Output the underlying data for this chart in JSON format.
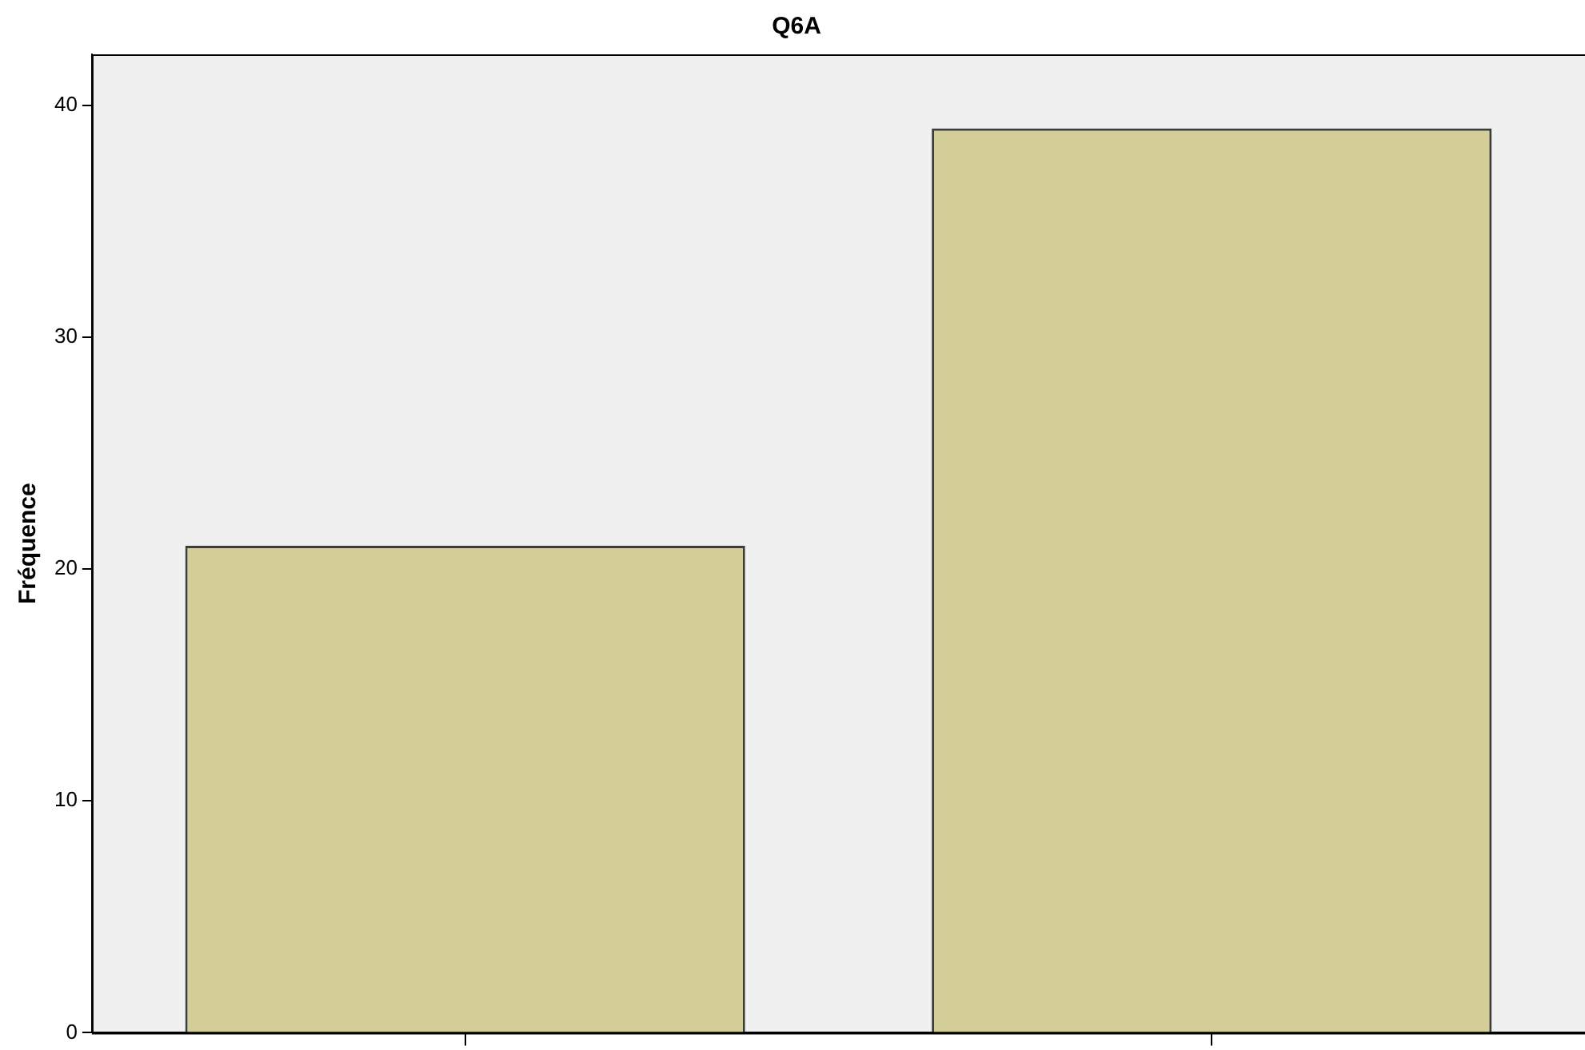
{
  "chart_data": {
    "type": "bar",
    "title": "Q6A",
    "ylabel": "Fréquence",
    "categories": [
      null,
      null
    ],
    "values": [
      21,
      39
    ],
    "color": "#d3ce97",
    "ylim": [
      0,
      42.2
    ],
    "yticks": [
      0,
      10,
      20,
      30,
      40
    ],
    "grid": false
  }
}
